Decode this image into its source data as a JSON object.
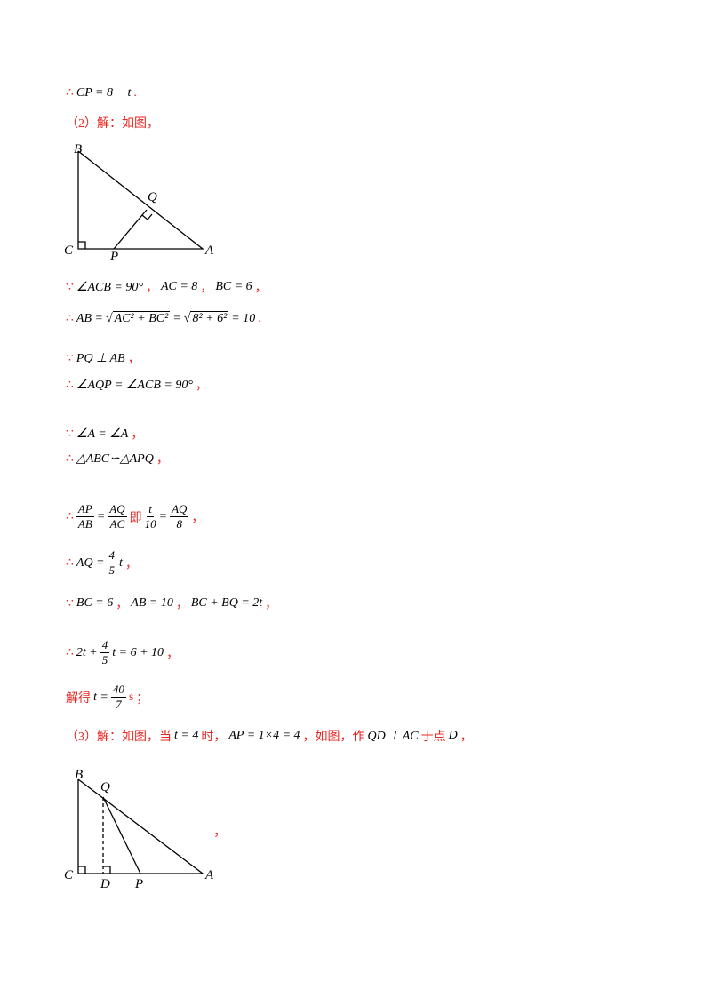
{
  "colors": {
    "mark": "#e8251f",
    "math": "#000000"
  },
  "lines": [
    [
      {
        "kind": "mark",
        "text": "∴"
      },
      {
        "kind": "math",
        "text": "CP = 8 − t"
      },
      {
        "kind": "mark",
        "text": "."
      }
    ],
    [
      {
        "kind": "mark",
        "text": "（2）解：如图，"
      }
    ],
    [
      {
        "kind": "mark",
        "text": "∵"
      },
      {
        "kind": "math",
        "text": "∠ACB = 90°"
      },
      {
        "kind": "mark",
        "text": "，"
      },
      {
        "kind": "math",
        "text": "AC = 8"
      },
      {
        "kind": "mark",
        "text": "，"
      },
      {
        "kind": "math",
        "text": "BC = 6"
      },
      {
        "kind": "mark",
        "text": "，"
      }
    ],
    [
      {
        "kind": "mark",
        "text": "∴"
      },
      {
        "kind": "math",
        "text": "AB ="
      },
      {
        "kind": "math",
        "sqrt": "√",
        "text": "AC² + BC²"
      },
      {
        "kind": "math",
        "text": "="
      },
      {
        "kind": "math",
        "sqrt": "√",
        "text": "8² + 6²"
      },
      {
        "kind": "math",
        "text": "= 10"
      },
      {
        "kind": "mark",
        "text": "."
      }
    ],
    [
      {
        "kind": "mark",
        "text": "∵"
      },
      {
        "kind": "math",
        "text": "PQ ⊥ AB"
      },
      {
        "kind": "mark",
        "text": "，"
      }
    ],
    [
      {
        "kind": "mark",
        "text": "∴"
      },
      {
        "kind": "math",
        "text": "∠AQP = ∠ACB = 90°"
      },
      {
        "kind": "mark",
        "text": "，"
      }
    ],
    [
      {
        "kind": "mark",
        "text": "∵"
      },
      {
        "kind": "math",
        "text": "∠A = ∠A"
      },
      {
        "kind": "mark",
        "text": "，"
      }
    ],
    [
      {
        "kind": "mark",
        "text": "∴"
      },
      {
        "kind": "math",
        "text": "△ABC∽△APQ"
      },
      {
        "kind": "mark",
        "text": "，"
      }
    ],
    [
      {
        "kind": "mark",
        "text": "∴"
      },
      {
        "kind": "math",
        "num": "AP",
        "den": "AB"
      },
      {
        "kind": "math",
        "text": "="
      },
      {
        "kind": "math",
        "num": "AQ",
        "den": "AC"
      },
      {
        "kind": "mark",
        "text": "即"
      },
      {
        "kind": "math",
        "num": "t",
        "den": "10"
      },
      {
        "kind": "math",
        "text": "="
      },
      {
        "kind": "math",
        "num": "AQ",
        "den": "8"
      },
      {
        "kind": "mark",
        "text": "，"
      }
    ],
    [
      {
        "kind": "mark",
        "text": "∴"
      },
      {
        "kind": "math",
        "text": "AQ ="
      },
      {
        "kind": "math",
        "num": "4",
        "den": "5"
      },
      {
        "kind": "math",
        "text": "t"
      },
      {
        "kind": "mark",
        "text": "，"
      }
    ],
    [
      {
        "kind": "mark",
        "text": "∵"
      },
      {
        "kind": "math",
        "text": "BC = 6"
      },
      {
        "kind": "mark",
        "text": "，"
      },
      {
        "kind": "math",
        "text": "AB = 10"
      },
      {
        "kind": "mark",
        "text": "，"
      },
      {
        "kind": "math",
        "text": "BC + BQ = 2t"
      },
      {
        "kind": "mark",
        "text": "，"
      }
    ],
    [
      {
        "kind": "mark",
        "text": "∴"
      },
      {
        "kind": "math",
        "text": "2t +"
      },
      {
        "kind": "math",
        "num": "4",
        "den": "5"
      },
      {
        "kind": "math",
        "text": "t = 6 + 10"
      },
      {
        "kind": "mark",
        "text": "，"
      }
    ],
    [
      {
        "kind": "mark",
        "text": "解得"
      },
      {
        "kind": "math",
        "text": "t ="
      },
      {
        "kind": "math",
        "num": "40",
        "den": "7"
      },
      {
        "kind": "mark",
        "text": "s"
      },
      {
        "kind": "mark",
        "text": "；"
      }
    ],
    [
      {
        "kind": "mark",
        "text": "（3）解：如图，当"
      },
      {
        "kind": "math",
        "text": "t = 4"
      },
      {
        "kind": "mark",
        "text": "时，"
      },
      {
        "kind": "math",
        "text": "AP = 1×4 = 4"
      },
      {
        "kind": "mark",
        "text": "，如图，作"
      },
      {
        "kind": "math",
        "text": "QD ⊥ AC"
      },
      {
        "kind": "mark",
        "text": "于点"
      },
      {
        "kind": "math",
        "text": "D"
      },
      {
        "kind": "mark",
        "text": "，"
      }
    ]
  ],
  "figure1": {
    "labels": [
      "B",
      "Q",
      "C",
      "P",
      "A"
    ]
  },
  "figure2": {
    "labels": [
      "B",
      "Q",
      "C",
      "D",
      "P",
      "A"
    ],
    "trailing": "，"
  }
}
